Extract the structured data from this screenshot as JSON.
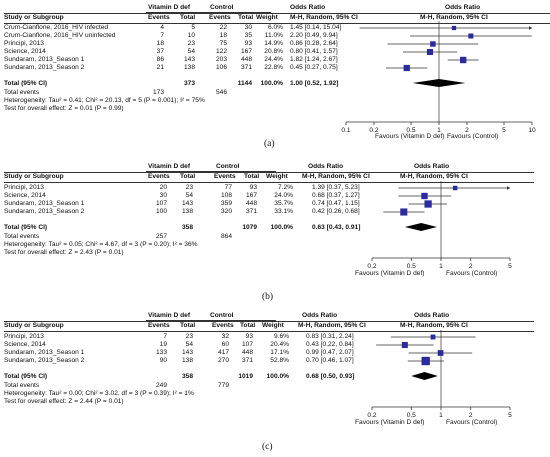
{
  "headers": {
    "vitd": "Vitamin D def",
    "vitd_a": "Vitamin D def",
    "control": "Control",
    "odds_ratio": "Odds Ratio",
    "study": "Study or Subgroup",
    "events": "Events",
    "total": "Total",
    "weight": "Weight",
    "method": "M-H, Random, 95% CI"
  },
  "chart_data": [
    {
      "type": "forest",
      "caption": "(a)",
      "rows": [
        {
          "study": "Crum-Cianflone, 2016_HIV infected",
          "e1": "4",
          "t1": "5",
          "e2": "22",
          "t2": "30",
          "weight": "6.0%",
          "ci_text": "1.45 [0.14, 15.04]",
          "or": 1.45,
          "lo": 0.14,
          "hi": 15.04
        },
        {
          "study": "Crum-Cianflone, 2016_HIV uninfected",
          "e1": "7",
          "t1": "10",
          "e2": "18",
          "t2": "35",
          "weight": "11.0%",
          "ci_text": "2.20 [0.49, 9.94]",
          "or": 2.2,
          "lo": 0.49,
          "hi": 9.94
        },
        {
          "study": "Principi, 2013",
          "e1": "18",
          "t1": "23",
          "e2": "75",
          "t2": "93",
          "weight": "14.9%",
          "ci_text": "0.86 [0.28, 2.64]",
          "or": 0.86,
          "lo": 0.28,
          "hi": 2.64
        },
        {
          "study": "Science, 2014",
          "e1": "37",
          "t1": "54",
          "e2": "122",
          "t2": "167",
          "weight": "20.8%",
          "ci_text": "0.80 [0.41, 1.57]",
          "or": 0.8,
          "lo": 0.41,
          "hi": 1.57
        },
        {
          "study": "Sundaram, 2013_Season 1",
          "e1": "86",
          "t1": "143",
          "e2": "203",
          "t2": "448",
          "weight": "24.4%",
          "ci_text": "1.82 [1.24, 2.67]",
          "or": 1.82,
          "lo": 1.24,
          "hi": 2.67
        },
        {
          "study": "Sundaram, 2013_Season 2",
          "e1": "21",
          "t1": "138",
          "e2": "106",
          "t2": "371",
          "weight": "22.8%",
          "ci_text": "0.45 [0.27, 0.75]",
          "or": 0.45,
          "lo": 0.27,
          "hi": 0.75
        }
      ],
      "total": {
        "label": "Total (95% CI)",
        "t1": "373",
        "t2": "1144",
        "weight": "100.0%",
        "ci_text": "1.00 [0.52, 1.92]",
        "or": 1.0,
        "lo": 0.52,
        "hi": 1.92
      },
      "total_events": {
        "label": "Total events",
        "e1": "173",
        "e2": "546"
      },
      "heterogeneity": "Heterogeneity: Tau² = 0.41; Chi² = 20.13, df = 5 (P = 0.001); I² = 75%",
      "overall_effect": "Test for overall effect: Z = 0.01 (P = 0.99)",
      "axis": {
        "scale": "log",
        "ticks": [
          0.1,
          0.2,
          0.5,
          1,
          2,
          5,
          10
        ],
        "tick_labels": [
          "0.1",
          "0.2",
          "0.5",
          "1",
          "2",
          "5",
          "10"
        ],
        "xlim": [
          0.1,
          10
        ]
      },
      "favours_left": "Favours (Vitamin D def)",
      "favours_right": "Favours (Control)"
    },
    {
      "type": "forest",
      "caption": "(b)",
      "rows": [
        {
          "study": "Principi, 2013",
          "e1": "20",
          "t1": "23",
          "e2": "77",
          "t2": "93",
          "weight": "7.2%",
          "ci_text": "1.39 [0.37, 5.23]",
          "or": 1.39,
          "lo": 0.37,
          "hi": 5.23
        },
        {
          "study": "Science, 2014",
          "e1": "30",
          "t1": "54",
          "e2": "108",
          "t2": "167",
          "weight": "24.0%",
          "ci_text": "0.68 [0.37, 1.27]",
          "or": 0.68,
          "lo": 0.37,
          "hi": 1.27
        },
        {
          "study": "Sundaram, 2013_Season 1",
          "e1": "107",
          "t1": "143",
          "e2": "359",
          "t2": "448",
          "weight": "35.7%",
          "ci_text": "0.74 [0.47, 1.15]",
          "or": 0.74,
          "lo": 0.47,
          "hi": 1.15
        },
        {
          "study": "Sundaram, 2013_Season 2",
          "e1": "100",
          "t1": "138",
          "e2": "320",
          "t2": "371",
          "weight": "33.1%",
          "ci_text": "0.42 [0.26, 0.68]",
          "or": 0.42,
          "lo": 0.26,
          "hi": 0.68
        }
      ],
      "total": {
        "label": "Total (95% CI)",
        "t1": "358",
        "t2": "1079",
        "weight": "100.0%",
        "ci_text": "0.63 [0.43, 0.91]",
        "or": 0.63,
        "lo": 0.43,
        "hi": 0.91
      },
      "total_events": {
        "label": "Total events",
        "e1": "257",
        "e2": "864"
      },
      "heterogeneity": "Heterogeneity: Tau² = 0.05; Chi² = 4.67, df = 3 (P = 0.20); I² = 36%",
      "overall_effect": "Test for overall effect: Z = 2.43 (P = 0.01)",
      "axis": {
        "scale": "log",
        "ticks": [
          0.2,
          0.5,
          1,
          2,
          5
        ],
        "tick_labels": [
          "0.2",
          "0.5",
          "1",
          "2",
          "5"
        ],
        "xlim": [
          0.2,
          5
        ]
      },
      "favours_left": "Favours (Vitamin D def)",
      "favours_right": "Favours (Control)"
    },
    {
      "type": "forest",
      "caption": "(c)",
      "rows": [
        {
          "study": "Principi, 2013",
          "e1": "7",
          "t1": "23",
          "e2": "32",
          "t2": "93",
          "weight": "9.6%",
          "ci_text": "0.83 [0.31, 2.24]",
          "or": 0.83,
          "lo": 0.31,
          "hi": 2.24
        },
        {
          "study": "Science, 2014",
          "e1": "19",
          "t1": "54",
          "e2": "60",
          "t2": "107",
          "weight": "20.4%",
          "ci_text": "0.43 [0.22, 0.84]",
          "or": 0.43,
          "lo": 0.22,
          "hi": 0.84
        },
        {
          "study": "Sundaram, 2013_Season 1",
          "e1": "133",
          "t1": "143",
          "e2": "417",
          "t2": "448",
          "weight": "17.1%",
          "ci_text": "0.99 [0.47, 2.07]",
          "or": 0.99,
          "lo": 0.47,
          "hi": 2.07
        },
        {
          "study": "Sundaram, 2013_Season 2",
          "e1": "90",
          "t1": "138",
          "e2": "270",
          "t2": "371",
          "weight": "52.8%",
          "ci_text": "0.70 [0.46, 1.07]",
          "or": 0.7,
          "lo": 0.46,
          "hi": 1.07
        }
      ],
      "total": {
        "label": "Total (95% CI)",
        "t1": "358",
        "t2": "1019",
        "weight": "100.0%",
        "ci_text": "0.68 [0.50, 0.93]",
        "or": 0.68,
        "lo": 0.5,
        "hi": 0.93
      },
      "total_events": {
        "label": "Total events",
        "e1": "249",
        "e2": "779"
      },
      "heterogeneity": "Heterogeneity: Tau² = 0.00; Chi² = 3.02, df = 3 (P = 0.39); I² = 1%",
      "overall_effect": "Test for overall effect: Z = 2.44 (P = 0.01)",
      "axis": {
        "scale": "log",
        "ticks": [
          0.2,
          0.5,
          1,
          2,
          5
        ],
        "tick_labels": [
          "0.2",
          "0.5",
          "1",
          "2",
          "5"
        ],
        "xlim": [
          0.2,
          5
        ]
      },
      "favours_left": "Favours (Vitamin D def)",
      "favours_right": "Favours (Control)"
    }
  ],
  "colors": {
    "marker": "#2b2b9e",
    "diamond": "#000000",
    "text": "#111111",
    "line": "#333333"
  }
}
